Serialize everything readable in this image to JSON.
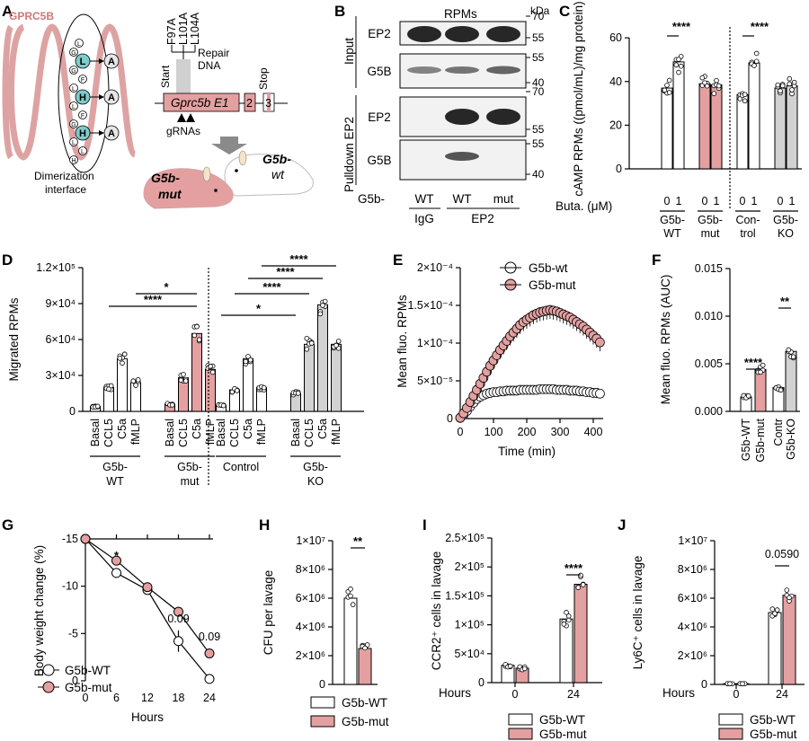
{
  "panels": {
    "a": {
      "letter": "A",
      "protein_label": "GPRC5B",
      "helix_residues": [
        "L",
        "G",
        "L",
        "G",
        "F",
        "L",
        "H",
        "L",
        "F",
        "G",
        "H",
        "L",
        "L",
        "H"
      ],
      "hl_residues": [
        "L",
        "L",
        "F"
      ],
      "mut_residue": "A",
      "dimer_label_1": "Dimerization",
      "dimer_label_2": "interface",
      "mutations": [
        "F97A",
        "L101A",
        "L104A"
      ],
      "start": "Start",
      "repair_1": "Repair",
      "repair_2": "DNA",
      "stop": "Stop",
      "exon1": "Gprc5b E1",
      "exon2": "2",
      "exon3": "3",
      "grnas": "gRNAs",
      "mouse_mut_1": "G5b-",
      "mouse_mut_2": "mut",
      "mouse_wt_1": "G5b-",
      "mouse_wt_2": "wt"
    },
    "b": {
      "letter": "B",
      "title": "RPMs",
      "kda": "kDa",
      "side_input": "Input",
      "side_pulldown": "Pulldown EP2",
      "blots": [
        {
          "label": "EP2",
          "markers": [
            "70",
            "55"
          ]
        },
        {
          "label": "G5B",
          "markers": [
            "55",
            "40"
          ]
        },
        {
          "label": "EP2",
          "markers": [
            "70",
            "55"
          ]
        },
        {
          "label": "G5B",
          "markers": [
            "55",
            "40"
          ]
        }
      ],
      "row_label": "G5b-",
      "lanes": [
        "WT",
        "WT",
        "mut"
      ],
      "groups": [
        "IgG",
        "EP2"
      ]
    },
    "c": {
      "letter": "C",
      "buta_label": "Buta. (μM)",
      "lane_ticks": [
        "0",
        "1",
        "0",
        "1",
        "0",
        "1",
        "0",
        "1"
      ],
      "groups": [
        [
          "G5b-",
          "WT"
        ],
        [
          "G5b-",
          "mut"
        ],
        [
          "Con-",
          "trol"
        ],
        [
          "G5b-",
          "KO"
        ]
      ],
      "sig": [
        "****",
        "****"
      ]
    },
    "d": {
      "letter": "D",
      "categories": [
        "Basal",
        "CCL5",
        "C5a",
        "fMLP"
      ],
      "groups": [
        [
          "G5b-",
          "WT"
        ],
        [
          "G5b-",
          "mut"
        ],
        [
          "Control",
          ""
        ],
        [
          "G5b-",
          "KO"
        ]
      ],
      "sig": [
        "*",
        "****",
        "*",
        "****",
        "****",
        "****"
      ]
    },
    "e": {
      "letter": "E",
      "legend": [
        "G5b-wt",
        "G5b-mut"
      ]
    },
    "f": {
      "letter": "F",
      "categories": [
        "G5b-WT",
        "G5b-mut",
        "Contr",
        "G5b-KO"
      ],
      "sig": [
        "****",
        "**"
      ]
    },
    "g": {
      "letter": "G",
      "legend": [
        "G5b-WT",
        "G5b-mut"
      ],
      "sig": [
        "*",
        "0.09",
        "0.09"
      ]
    },
    "h": {
      "letter": "H",
      "legend": [
        "G5b-WT",
        "G5b-mut"
      ],
      "sig": [
        "**"
      ]
    },
    "i": {
      "letter": "I",
      "hours_label": "Hours",
      "legend": [
        "G5b-WT",
        "G5b-mut"
      ],
      "sig": [
        "****"
      ]
    },
    "j": {
      "letter": "J",
      "hours_label": "Hours",
      "legend": [
        "G5b-WT",
        "G5b-mut"
      ],
      "sig": [
        "0.0590"
      ]
    }
  },
  "colors": {
    "wt": "#ffffff",
    "mut": "#e4a0a0",
    "ko": "#d2d2d2",
    "mut_line": "#c85a5a",
    "helix": "#dda3a3",
    "residue_hl": "#7ecbcb"
  },
  "chart_data": [
    {
      "panel": "C",
      "type": "bar",
      "ylabel": "cAMP RPMs ((pmol/mL)/mg protein)",
      "yticks": [
        "0",
        "20",
        "40",
        "60"
      ],
      "ylim": [
        0,
        65
      ],
      "categories": [
        "G5b-WT 0",
        "G5b-WT 1",
        "G5b-mut 0",
        "G5b-mut 1",
        "Control 0",
        "Control 1",
        "G5b-KO 0",
        "G5b-KO 1"
      ],
      "values": [
        37,
        49,
        39,
        38.5,
        34,
        48.5,
        37,
        38
      ]
    },
    {
      "panel": "D",
      "type": "bar",
      "ylabel": "Migrated RPMs",
      "yticks": [
        "0",
        "3×10⁴",
        "6×10⁴",
        "9×10⁴",
        "1.2×10⁵"
      ],
      "ylim": [
        0,
        120000
      ],
      "categories": [
        "G5b-WT Basal",
        "G5b-WT CCL5",
        "G5b-WT C5a",
        "G5b-WT fMLP",
        "G5b-mut Basal",
        "G5b-mut CCL5",
        "G5b-mut C5a",
        "G5b-mut fMLP",
        "Control Basal",
        "Control CCL5",
        "Control C5a",
        "Control fMLP",
        "G5b-KO Basal",
        "G5b-KO CCL5",
        "G5b-KO C5a",
        "G5b-KO fMLP"
      ],
      "values": [
        4000,
        20000,
        44000,
        24000,
        6000,
        28000,
        65000,
        35000,
        5000,
        18000,
        44000,
        20000,
        15000,
        56000,
        89000,
        56000
      ]
    },
    {
      "panel": "E",
      "type": "line",
      "xlabel": "Time (min)",
      "ylabel": "Mean fluo. RPMs",
      "xticks": [
        "0",
        "100",
        "200",
        "300",
        "400"
      ],
      "xlim": [
        0,
        430
      ],
      "yticks": [
        "0",
        "5×10⁻⁵",
        "1×10⁻⁴",
        "1.5×10⁻⁴",
        "2×10⁻⁴"
      ],
      "ylim": [
        0,
        0.0002
      ],
      "series": [
        {
          "name": "G5b-wt",
          "x": [
            0,
            10,
            20,
            30,
            40,
            50,
            60,
            70,
            80,
            90,
            100,
            110,
            120,
            130,
            140,
            150,
            160,
            170,
            180,
            190,
            200,
            210,
            220,
            230,
            240,
            250,
            260,
            270,
            280,
            290,
            300,
            310,
            320,
            330,
            340,
            350,
            360,
            370,
            380,
            390,
            400,
            410,
            420
          ],
          "y": [
            1e-06,
            5e-06,
            1e-05,
            1.6e-05,
            2.1e-05,
            2.6e-05,
            2.9e-05,
            3.1e-05,
            3.3e-05,
            3.4e-05,
            3.5e-05,
            3.5e-05,
            3.6e-05,
            3.6e-05,
            3.7e-05,
            3.7e-05,
            3.7e-05,
            3.7e-05,
            3.8e-05,
            3.8e-05,
            3.8e-05,
            3.8e-05,
            3.8e-05,
            3.8e-05,
            3.9e-05,
            3.9e-05,
            3.9e-05,
            3.9e-05,
            3.9e-05,
            3.8e-05,
            3.8e-05,
            3.8e-05,
            3.8e-05,
            3.7e-05,
            3.7e-05,
            3.7e-05,
            3.6e-05,
            3.6e-05,
            3.5e-05,
            3.5e-05,
            3.4e-05,
            3.4e-05,
            3.3e-05
          ]
        },
        {
          "name": "G5b-mut",
          "x": [
            0,
            10,
            20,
            30,
            40,
            50,
            60,
            70,
            80,
            90,
            100,
            110,
            120,
            130,
            140,
            150,
            160,
            170,
            180,
            190,
            200,
            210,
            220,
            230,
            240,
            250,
            260,
            270,
            280,
            290,
            300,
            310,
            320,
            330,
            340,
            350,
            360,
            370,
            380,
            390,
            400,
            410,
            420
          ],
          "y": [
            1e-06,
            7e-06,
            1.4e-05,
            2.2e-05,
            3e-05,
            3.8e-05,
            4.6e-05,
            5.4e-05,
            6.2e-05,
            7e-05,
            7.7e-05,
            8.4e-05,
            9.1e-05,
            9.7e-05,
            0.000103,
            0.000109,
            0.000114,
            0.000119,
            0.000124,
            0.000128,
            0.000131,
            0.000134,
            0.000137,
            0.000139,
            0.000141,
            0.000142,
            0.000143,
            0.000144,
            0.000143,
            0.000142,
            0.00014,
            0.000138,
            0.000136,
            0.000134,
            0.000131,
            0.000128,
            0.000125,
            0.000122,
            0.000118,
            0.000114,
            0.00011,
            0.000106,
            0.000101
          ]
        }
      ]
    },
    {
      "panel": "F",
      "type": "bar",
      "ylabel": "Mean fluo. RPMs (AUC)",
      "yticks": [
        "0.000",
        "0.005",
        "0.010",
        "0.015"
      ],
      "ylim": [
        0,
        0.015
      ],
      "categories": [
        "G5b-WT",
        "G5b-mut",
        "Contr",
        "G5b-KO"
      ],
      "values": [
        0.0015,
        0.0044,
        0.0025,
        0.0063
      ]
    },
    {
      "panel": "G",
      "type": "line",
      "xlabel": "Hours",
      "ylabel": "Body weight change (%)",
      "xticks": [
        "0",
        "6",
        "12",
        "18",
        "24"
      ],
      "xlim": [
        0,
        24
      ],
      "yticks": [
        "0",
        "-5",
        "-10",
        "-15"
      ],
      "ylim": [
        -15,
        0
      ],
      "series": [
        {
          "name": "G5b-WT",
          "x": [
            0,
            6,
            12,
            18,
            24
          ],
          "y": [
            0,
            -3.6,
            -5.4,
            -10.8,
            -14.8
          ]
        },
        {
          "name": "G5b-mut",
          "x": [
            0,
            6,
            12,
            18,
            24
          ],
          "y": [
            0,
            -2.3,
            -5.1,
            -7.7,
            -12.1
          ]
        }
      ]
    },
    {
      "panel": "H",
      "type": "bar",
      "ylabel": "CFU per lavage",
      "yticks": [
        "0",
        "2×10⁶",
        "4×10⁶",
        "6×10⁶",
        "8×10⁶",
        "1×10⁷"
      ],
      "ylim": [
        0,
        10000000
      ],
      "categories": [
        "G5b-WT",
        "G5b-mut"
      ],
      "values": [
        6000000,
        2500000
      ]
    },
    {
      "panel": "I",
      "type": "bar",
      "ylabel": "CCR2⁺ cells in lavage",
      "xticks": [
        "0",
        "24"
      ],
      "yticks": [
        "0",
        "5×10⁴",
        "1×10⁵",
        "1.5×10⁵",
        "2×10⁵",
        "2.5×10⁵"
      ],
      "ylim": [
        0,
        250000
      ],
      "categories": [
        "0 G5b-WT",
        "0 G5b-mut",
        "24 G5b-WT",
        "24 G5b-mut"
      ],
      "values": [
        30000,
        25000,
        110000,
        170000
      ]
    },
    {
      "panel": "J",
      "type": "bar",
      "ylabel": "Ly6C⁺ cells in lavage",
      "xticks": [
        "0",
        "24"
      ],
      "yticks": [
        "0",
        "2×10⁶",
        "4×10⁶",
        "6×10⁶",
        "8×10⁶",
        "1×10⁷"
      ],
      "ylim": [
        0,
        10000000
      ],
      "categories": [
        "0 G5b-WT",
        "0 G5b-mut",
        "24 G5b-WT",
        "24 G5b-mut"
      ],
      "values": [
        50000,
        50000,
        5000000,
        6200000
      ]
    }
  ]
}
